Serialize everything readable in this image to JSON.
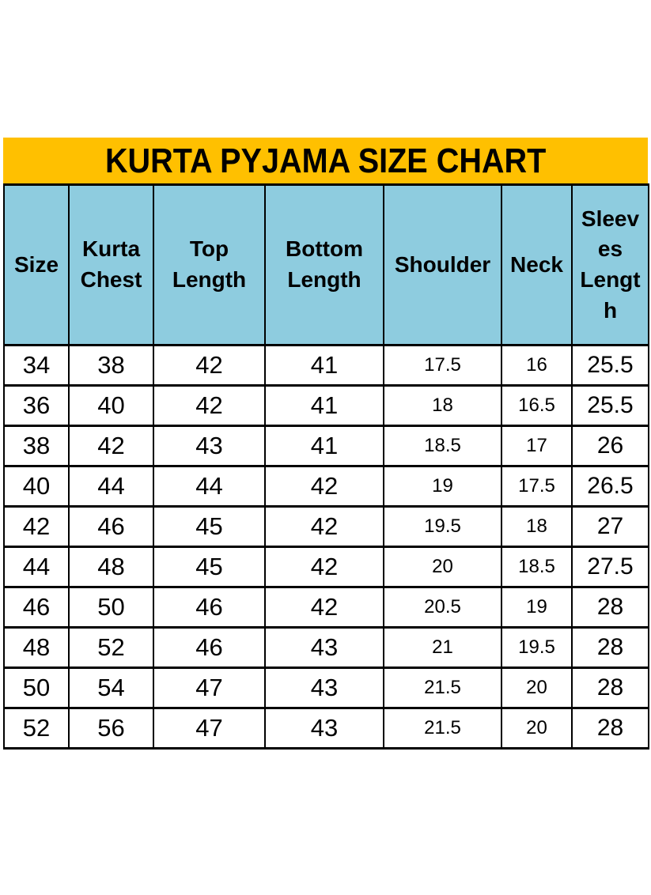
{
  "title": "KURTA PYJAMA SIZE CHART",
  "colors": {
    "title_bg": "#FFC000",
    "header_bg": "#8ECCDF",
    "border": "#000000",
    "text": "#000000",
    "page_bg": "#FFFFFF"
  },
  "table": {
    "columns": [
      {
        "key": "size",
        "header_lines": [
          "Size"
        ]
      },
      {
        "key": "kurta-chest",
        "header_lines": [
          "Kurta",
          "Chest"
        ]
      },
      {
        "key": "top-length",
        "header_lines": [
          "Top",
          "Length"
        ]
      },
      {
        "key": "bottom-length",
        "header_lines": [
          "Bottom",
          "Length"
        ]
      },
      {
        "key": "shoulder",
        "header_lines": [
          "Shoulder"
        ]
      },
      {
        "key": "neck",
        "header_lines": [
          "Neck"
        ]
      },
      {
        "key": "sleeves-length",
        "header_lines": [
          "Sleev",
          "es",
          "Lengt",
          "h"
        ]
      }
    ]
  },
  "chart_data": {
    "type": "table",
    "title": "KURTA PYJAMA SIZE CHART",
    "columns": [
      "Size",
      "Kurta Chest",
      "Top Length",
      "Bottom Length",
      "Shoulder",
      "Neck",
      "Sleeves Length"
    ],
    "rows": [
      [
        "34",
        "38",
        "42",
        "41",
        "17.5",
        "16",
        "25.5"
      ],
      [
        "36",
        "40",
        "42",
        "41",
        "18",
        "16.5",
        "25.5"
      ],
      [
        "38",
        "42",
        "43",
        "41",
        "18.5",
        "17",
        "26"
      ],
      [
        "40",
        "44",
        "44",
        "42",
        "19",
        "17.5",
        "26.5"
      ],
      [
        "42",
        "46",
        "45",
        "42",
        "19.5",
        "18",
        "27"
      ],
      [
        "44",
        "48",
        "45",
        "42",
        "20",
        "18.5",
        "27.5"
      ],
      [
        "46",
        "50",
        "46",
        "42",
        "20.5",
        "19",
        "28"
      ],
      [
        "48",
        "52",
        "46",
        "43",
        "21",
        "19.5",
        "28"
      ],
      [
        "50",
        "54",
        "47",
        "43",
        "21.5",
        "20",
        "28"
      ],
      [
        "52",
        "56",
        "47",
        "43",
        "21.5",
        "20",
        "28"
      ]
    ]
  }
}
